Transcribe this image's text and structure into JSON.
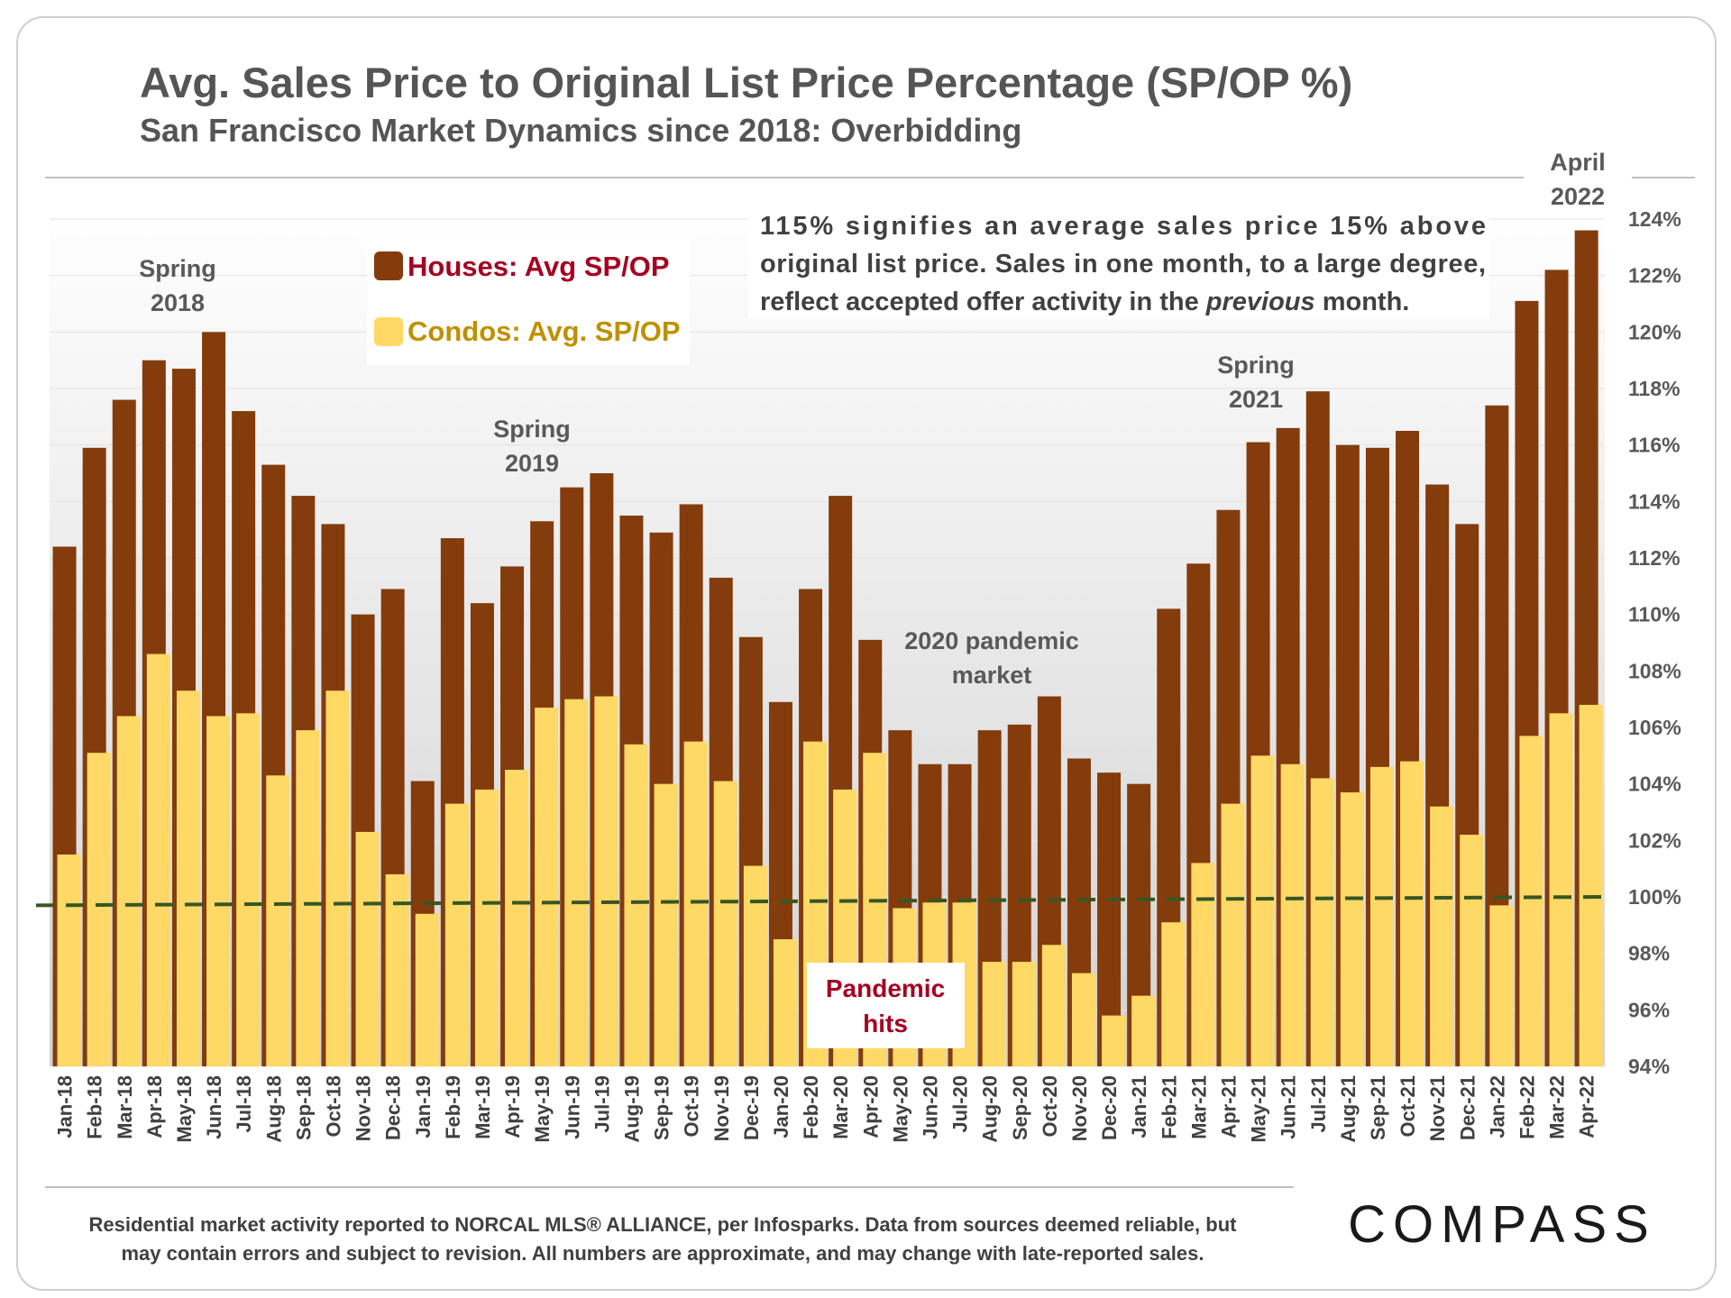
{
  "chart_data": {
    "type": "bar",
    "title": "Avg. Sales Price to Original List Price Percentage (SP/OP %)",
    "subtitle": "San Francisco Market Dynamics since 2018: Overbidding",
    "categories": [
      "Jan-18",
      "Feb-18",
      "Mar-18",
      "Apr-18",
      "May-18",
      "Jun-18",
      "Jul-18",
      "Aug-18",
      "Sep-18",
      "Oct-18",
      "Nov-18",
      "Dec-18",
      "Jan-19",
      "Feb-19",
      "Mar-19",
      "Apr-19",
      "May-19",
      "Jun-19",
      "Jul-19",
      "Aug-19",
      "Sep-19",
      "Oct-19",
      "Nov-19",
      "Dec-19",
      "Jan-20",
      "Feb-20",
      "Mar-20",
      "Apr-20",
      "May-20",
      "Jun-20",
      "Jul-20",
      "Aug-20",
      "Sep-20",
      "Oct-20",
      "Nov-20",
      "Dec-20",
      "Jan-21",
      "Feb-21",
      "Mar-21",
      "Apr-21",
      "May-21",
      "Jun-21",
      "Jul-21",
      "Aug-21",
      "Sep-21",
      "Oct-21",
      "Nov-21",
      "Dec-21",
      "Jan-22",
      "Feb-22",
      "Mar-22",
      "Apr-22"
    ],
    "series": [
      {
        "name": "Houses: Avg SP/OP",
        "color": "#843c0c",
        "values": [
          112.4,
          115.9,
          117.6,
          119.0,
          118.7,
          120.0,
          117.2,
          115.3,
          114.2,
          113.2,
          110.0,
          110.9,
          104.1,
          112.7,
          110.4,
          111.7,
          113.3,
          114.5,
          115.0,
          113.5,
          112.9,
          113.9,
          111.3,
          109.2,
          106.9,
          110.9,
          114.2,
          109.1,
          105.9,
          104.7,
          104.7,
          105.9,
          106.1,
          107.1,
          104.9,
          104.4,
          104.0,
          110.2,
          111.8,
          113.7,
          116.1,
          116.6,
          117.9,
          116.0,
          115.9,
          116.5,
          114.6,
          113.2,
          117.4,
          121.1,
          122.2,
          123.6
        ]
      },
      {
        "name": "Condos: Avg. SP/OP",
        "color": "#ffd966",
        "values": [
          101.5,
          105.1,
          106.4,
          108.6,
          107.3,
          106.4,
          106.5,
          104.3,
          105.9,
          107.3,
          102.3,
          100.8,
          99.4,
          103.3,
          103.8,
          104.5,
          106.7,
          107.0,
          107.1,
          105.4,
          104.0,
          105.5,
          104.1,
          101.1,
          98.5,
          105.5,
          103.8,
          105.1,
          99.6,
          99.8,
          99.8,
          97.7,
          97.7,
          98.3,
          97.3,
          95.8,
          96.5,
          99.1,
          101.2,
          103.3,
          105.0,
          104.7,
          104.2,
          103.7,
          104.6,
          104.8,
          103.2,
          102.2,
          99.7,
          105.7,
          106.5,
          106.8
        ]
      }
    ],
    "ylim": [
      94,
      124
    ],
    "yticks": [
      "94%",
      "96%",
      "98%",
      "100%",
      "102%",
      "104%",
      "106%",
      "108%",
      "110%",
      "112%",
      "114%",
      "116%",
      "118%",
      "120%",
      "122%",
      "124%"
    ],
    "reference_line": {
      "start": 99.7,
      "end": 100.0,
      "color": "#375623"
    },
    "annotations": {
      "spring_2018": [
        "Spring",
        "2018"
      ],
      "spring_2019": [
        "Spring",
        "2019"
      ],
      "spring_2021": [
        "Spring",
        "2021"
      ],
      "april_2022": [
        "April",
        "2022"
      ],
      "pandemic_market": [
        "2020 pandemic",
        "market"
      ],
      "pandemic_hits": [
        "Pandemic",
        "hits"
      ],
      "pandemic_hits_color": "#a50021"
    },
    "note_lines": [
      "115% signifies an average sales price 15% above",
      "original list price. Sales in one month, to a large degree,",
      "reflect accepted offer activity in the "
    ],
    "note_italic": "previous",
    "note_tail": " month.",
    "legend": {
      "houses_label": "Houses: Avg SP/OP",
      "houses_label_color": "#a50021",
      "condos_label": "Condos: Avg. SP/OP",
      "condos_label_color": "#bf9000"
    }
  },
  "footer": {
    "line1": "Residential market activity reported to NORCAL MLS® ALLIANCE, per Infosparks. Data from sources deemed reliable, but",
    "line2": "may contain errors and subject to revision. All numbers are approximate, and may change with late-reported sales."
  },
  "brand": {
    "logo": "COMPASS"
  }
}
